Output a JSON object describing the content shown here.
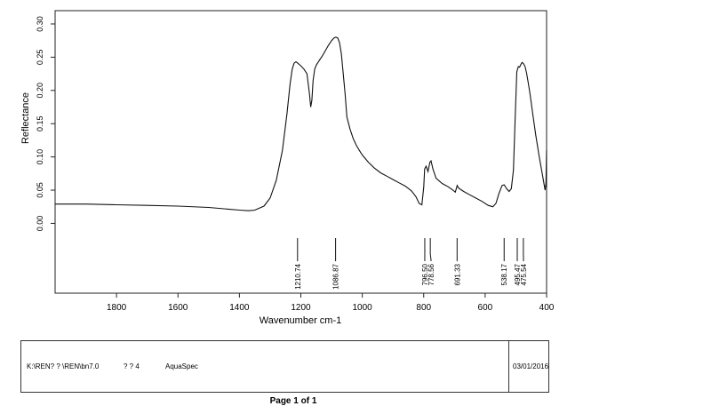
{
  "chart_data": {
    "type": "line",
    "title": "",
    "xlabel": "Wavenumber cm-1",
    "ylabel": "Reflectance",
    "xlim": [
      2000,
      400
    ],
    "ylim": [
      -0.105,
      0.32
    ],
    "x_ticks": [
      "1800",
      "1600",
      "1400",
      "1200",
      "1000",
      "800",
      "600",
      "400"
    ],
    "x_tick_values": [
      1800,
      1600,
      1400,
      1200,
      1000,
      800,
      600,
      400
    ],
    "y_ticks": [
      "0.00",
      "0.05",
      "0.10",
      "0.15",
      "0.20",
      "0.25",
      "0.30"
    ],
    "y_tick_values": [
      0.0,
      0.05,
      0.1,
      0.15,
      0.2,
      0.25,
      0.3
    ],
    "grid": false,
    "series": [
      {
        "x": [
          2000,
          1900,
          1800,
          1700,
          1600,
          1500,
          1450,
          1400,
          1370,
          1350,
          1320,
          1300,
          1280,
          1260,
          1245,
          1235,
          1228,
          1222,
          1216,
          1210,
          1200,
          1190,
          1180,
          1172,
          1168,
          1164,
          1160,
          1155,
          1150,
          1140,
          1130,
          1120,
          1110,
          1100,
          1092,
          1086,
          1080,
          1074,
          1068,
          1062,
          1056,
          1050,
          1040,
          1030,
          1020,
          1010,
          1000,
          980,
          960,
          940,
          920,
          900,
          880,
          860,
          840,
          825,
          815,
          806,
          800,
          797,
          792,
          786,
          780,
          776,
          770,
          760,
          740,
          720,
          705,
          697,
          691,
          686,
          670,
          650,
          630,
          610,
          590,
          575,
          565,
          555,
          545,
          538,
          530,
          522,
          515,
          508,
          502,
          497,
          492,
          488,
          484,
          480,
          476,
          470,
          465,
          460,
          455,
          450,
          445,
          440,
          435,
          430,
          425,
          420,
          415,
          410,
          405,
          402,
          400
        ],
        "y": [
          0.029,
          0.029,
          0.028,
          0.027,
          0.026,
          0.024,
          0.022,
          0.02,
          0.019,
          0.02,
          0.026,
          0.038,
          0.065,
          0.11,
          0.165,
          0.21,
          0.232,
          0.241,
          0.243,
          0.241,
          0.237,
          0.232,
          0.225,
          0.195,
          0.175,
          0.185,
          0.215,
          0.232,
          0.238,
          0.245,
          0.252,
          0.26,
          0.268,
          0.275,
          0.279,
          0.28,
          0.279,
          0.272,
          0.255,
          0.225,
          0.195,
          0.16,
          0.142,
          0.128,
          0.118,
          0.11,
          0.103,
          0.092,
          0.083,
          0.076,
          0.071,
          0.066,
          0.061,
          0.056,
          0.049,
          0.04,
          0.03,
          0.028,
          0.055,
          0.082,
          0.086,
          0.078,
          0.092,
          0.094,
          0.082,
          0.068,
          0.06,
          0.055,
          0.05,
          0.047,
          0.057,
          0.053,
          0.048,
          0.043,
          0.038,
          0.033,
          0.027,
          0.025,
          0.03,
          0.045,
          0.057,
          0.058,
          0.052,
          0.048,
          0.052,
          0.08,
          0.16,
          0.228,
          0.236,
          0.235,
          0.239,
          0.242,
          0.241,
          0.236,
          0.226,
          0.212,
          0.198,
          0.182,
          0.165,
          0.148,
          0.132,
          0.118,
          0.103,
          0.09,
          0.077,
          0.064,
          0.05,
          0.06,
          0.11
        ]
      }
    ],
    "peak_labels": [
      {
        "label": "1210.74",
        "x": 1210.74
      },
      {
        "label": "1086.87",
        "x": 1086.87
      },
      {
        "label": "796.50",
        "x": 796.5
      },
      {
        "label": "778.56",
        "x": 778.56
      },
      {
        "label": "691.33",
        "x": 691.33
      },
      {
        "label": "538.17",
        "x": 538.17
      },
      {
        "label": "495.47",
        "x": 495.47
      },
      {
        "label": "475.54",
        "x": 475.54
      }
    ]
  },
  "footer": {
    "path": "K:\\REN? ? \\REN\\bn7.0",
    "number": "? ? 4",
    "app": "AquaSpec",
    "date": "03/01/2016"
  },
  "page": {
    "label": "Page 1 of 1"
  }
}
